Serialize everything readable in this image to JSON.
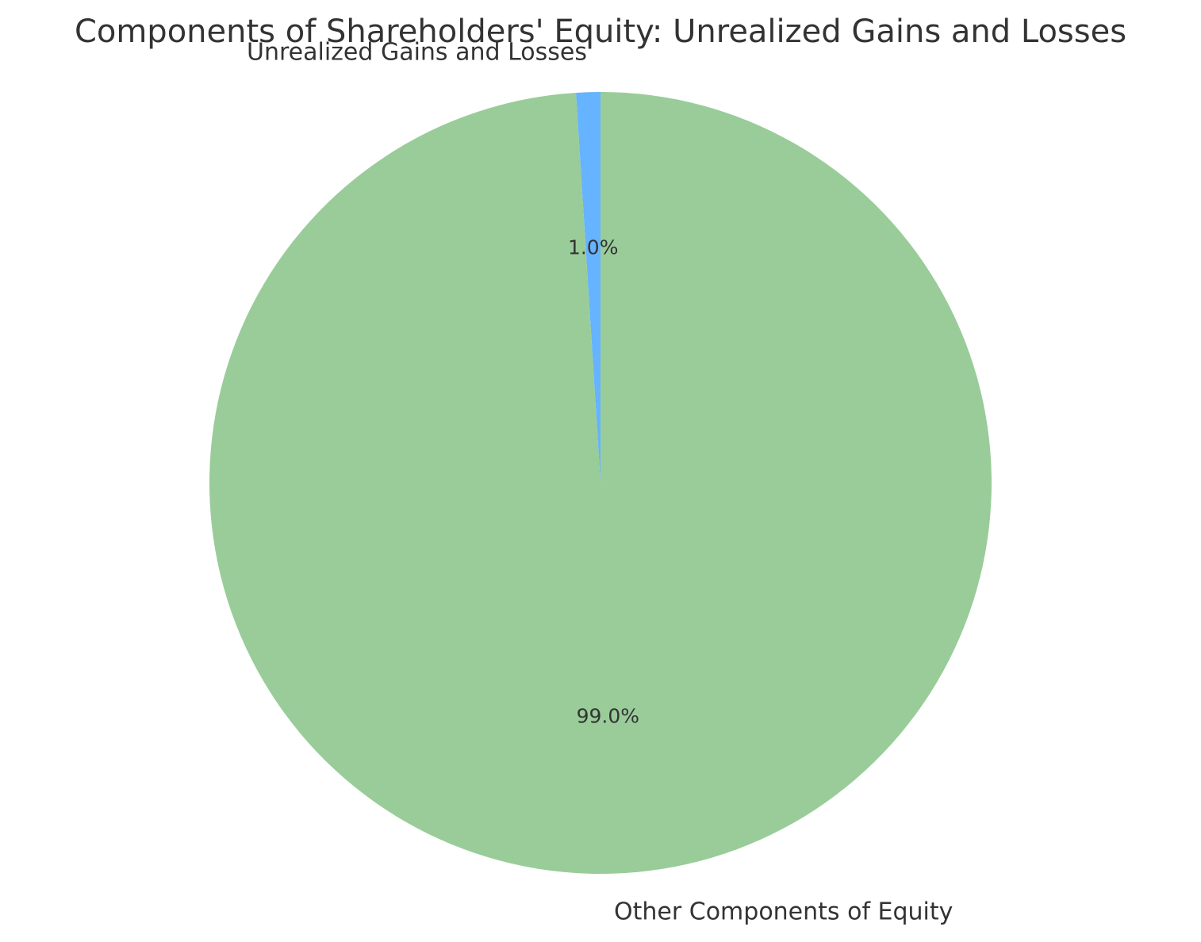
{
  "chart_data": {
    "type": "pie",
    "title": "Components of Shareholders' Equity: Unrealized Gains and Losses",
    "categories": [
      "Unrealized Gains and Losses",
      "Other Components of Equity"
    ],
    "values": [
      1.0,
      99.0
    ],
    "percent_labels": [
      "1.0%",
      "99.0%"
    ],
    "colors": [
      "#66b3ff",
      "#99cc99"
    ],
    "start_angle_deg": 90,
    "direction": "counterclockwise",
    "legend": "none"
  }
}
